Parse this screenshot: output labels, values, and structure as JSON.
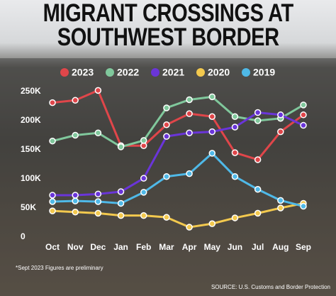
{
  "chart_data": {
    "type": "line",
    "title": "MIGRANT CROSSINGS AT SOUTHWEST BORDER",
    "categories": [
      "Oct",
      "Nov",
      "Dec",
      "Jan",
      "Feb",
      "Mar",
      "Apr",
      "May",
      "Jun",
      "Jul",
      "Aug",
      "Sep"
    ],
    "series": [
      {
        "name": "2023",
        "color": "#e0464a",
        "values": [
          231000,
          235000,
          252000,
          157000,
          157000,
          193000,
          212000,
          207000,
          145000,
          133000,
          181000,
          210000
        ]
      },
      {
        "name": "2022",
        "color": "#80c89c",
        "values": [
          165000,
          175000,
          179000,
          155000,
          166000,
          222000,
          236000,
          241000,
          207000,
          200000,
          204000,
          227000
        ]
      },
      {
        "name": "2021",
        "color": "#6a35d9",
        "values": [
          72000,
          72000,
          74000,
          78000,
          101000,
          173000,
          179000,
          181000,
          189000,
          214000,
          210000,
          192000
        ]
      },
      {
        "name": "2020",
        "color": "#f3c94e",
        "values": [
          45000,
          43000,
          41000,
          37000,
          37000,
          34000,
          17000,
          23000,
          33000,
          41000,
          50000,
          58000
        ]
      },
      {
        "name": "2019",
        "color": "#4fb9e8",
        "values": [
          61000,
          62000,
          61000,
          58000,
          77000,
          104000,
          109000,
          144000,
          104000,
          82000,
          63000,
          53000
        ]
      }
    ],
    "ylim": [
      0,
      250000
    ],
    "yticks": [
      0,
      {
        "value": 50000,
        "label": "50K"
      },
      {
        "value": 100000,
        "label": "100K"
      },
      {
        "value": 150000,
        "label": "150K"
      },
      {
        "value": 200000,
        "label": "200K"
      },
      {
        "value": 250000,
        "label": "250K"
      }
    ],
    "grid": false,
    "footnote": "*Sept 2023 Figures are preliminary",
    "source": "SOURCE: U.S. Customs and Border Protection"
  }
}
